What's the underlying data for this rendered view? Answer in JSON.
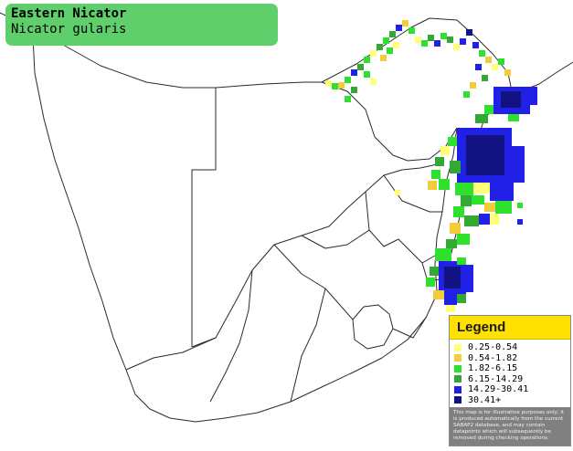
{
  "title": {
    "common_name": "Eastern Nicator",
    "scientific_name": "Nicator gularis"
  },
  "legend": {
    "heading": "Legend",
    "items": [
      {
        "label": "0.25-0.54",
        "color": "#ffff7a"
      },
      {
        "label": "0.54-1.82",
        "color": "#f2cc3a"
      },
      {
        "label": "1.82-6.15",
        "color": "#2fe02f"
      },
      {
        "label": "6.15-14.29",
        "color": "#33a833"
      },
      {
        "label": "14.29-30.41",
        "color": "#2020e6"
      },
      {
        "label": "30.41+",
        "color": "#121282"
      }
    ],
    "disclaimer": "This map is for illustrative purposes only; it is produced automatically from the current SABAP2 database, and may contain datapoints which will subsequently be removed during checking operations."
  },
  "colors": {
    "title_box": "#5fcf6b",
    "legend_header": "#ffe200",
    "borders": "#2a2a2a",
    "background": "#ffffff"
  }
}
